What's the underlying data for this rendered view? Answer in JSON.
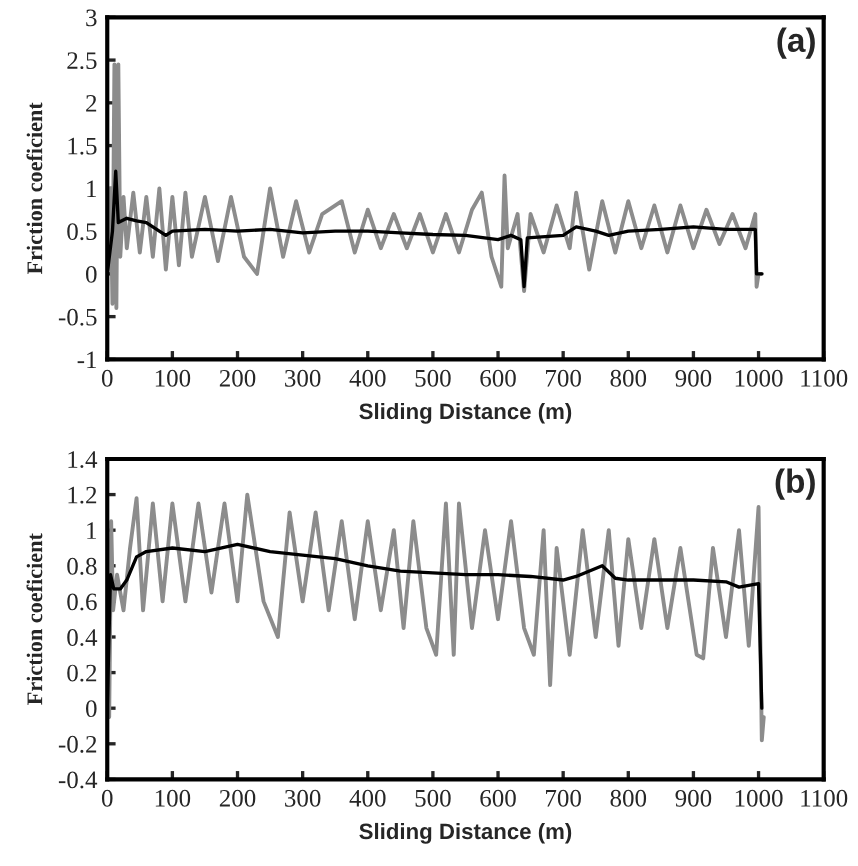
{
  "chart_data": [
    {
      "type": "line",
      "xlabel": "Sliding Distance (m)",
      "ylabel": "Friction coeficient",
      "annotations": [
        "(a)"
      ],
      "xlim": [
        0,
        1100
      ],
      "xticks": [
        0,
        100,
        200,
        300,
        400,
        500,
        600,
        700,
        800,
        900,
        1000,
        1100
      ],
      "ylim": [
        -1,
        3
      ],
      "yticks": [
        -1,
        -0.5,
        0,
        0.5,
        1,
        1.5,
        2,
        2.5,
        3
      ],
      "grid": false,
      "legend": false,
      "series": [
        {
          "color": "#8c8c8c",
          "x": [
            0,
            5,
            8,
            11,
            14,
            17,
            20,
            25,
            30,
            40,
            50,
            60,
            70,
            80,
            90,
            100,
            110,
            120,
            130,
            150,
            170,
            190,
            210,
            230,
            250,
            270,
            290,
            310,
            330,
            360,
            380,
            400,
            420,
            440,
            460,
            480,
            500,
            520,
            540,
            560,
            575,
            590,
            605,
            610,
            615,
            630,
            640,
            650,
            670,
            690,
            710,
            720,
            740,
            760,
            780,
            800,
            820,
            840,
            860,
            880,
            900,
            920,
            940,
            960,
            980,
            995,
            997,
            1000,
            1005
          ],
          "values": [
            0,
            1.0,
            -0.35,
            2.45,
            -0.4,
            2.45,
            0.2,
            0.9,
            0.3,
            0.95,
            0.25,
            0.9,
            0.2,
            1.0,
            0.05,
            0.9,
            0.1,
            0.95,
            0.2,
            0.9,
            0.15,
            0.9,
            0.2,
            0.0,
            1.0,
            0.2,
            0.85,
            0.25,
            0.7,
            0.85,
            0.25,
            0.75,
            0.3,
            0.7,
            0.3,
            0.7,
            0.25,
            0.7,
            0.25,
            0.75,
            0.95,
            0.2,
            -0.15,
            1.15,
            0.3,
            0.7,
            -0.2,
            0.7,
            0.25,
            0.8,
            0.3,
            0.95,
            0.05,
            0.85,
            0.25,
            0.85,
            0.3,
            0.8,
            0.25,
            0.8,
            0.3,
            0.75,
            0.35,
            0.7,
            0.3,
            0.7,
            -0.15,
            0.0,
            0.0
          ]
        },
        {
          "color": "#000000",
          "x": [
            0,
            8,
            13,
            17,
            30,
            45,
            60,
            80,
            90,
            100,
            150,
            200,
            250,
            300,
            350,
            400,
            450,
            500,
            550,
            600,
            620,
            635,
            640,
            645,
            700,
            720,
            750,
            770,
            800,
            850,
            900,
            950,
            995,
            997,
            1005
          ],
          "values": [
            0,
            0.5,
            1.2,
            0.6,
            0.65,
            0.62,
            0.6,
            0.5,
            0.45,
            0.5,
            0.52,
            0.5,
            0.52,
            0.48,
            0.5,
            0.5,
            0.48,
            0.46,
            0.45,
            0.4,
            0.45,
            0.4,
            -0.15,
            0.42,
            0.45,
            0.55,
            0.5,
            0.45,
            0.5,
            0.52,
            0.55,
            0.52,
            0.52,
            0.0,
            0.0
          ]
        }
      ]
    },
    {
      "type": "line",
      "xlabel": "Sliding Distance (m)",
      "ylabel": "Friction coeficient",
      "annotations": [
        "(b)"
      ],
      "xlim": [
        0,
        1100
      ],
      "xticks": [
        0,
        100,
        200,
        300,
        400,
        500,
        600,
        700,
        800,
        900,
        1000,
        1100
      ],
      "ylim": [
        -0.4,
        1.4
      ],
      "yticks": [
        -0.4,
        -0.2,
        0,
        0.2,
        0.4,
        0.6,
        0.8,
        1,
        1.2,
        1.4
      ],
      "grid": false,
      "legend": false,
      "series": [
        {
          "color": "#8c8c8c",
          "x": [
            0,
            3,
            6,
            9,
            15,
            25,
            35,
            45,
            55,
            70,
            85,
            100,
            120,
            140,
            160,
            180,
            200,
            215,
            240,
            262,
            280,
            300,
            320,
            340,
            360,
            380,
            400,
            420,
            440,
            455,
            470,
            490,
            505,
            520,
            532,
            540,
            560,
            580,
            600,
            620,
            640,
            655,
            670,
            680,
            690,
            710,
            730,
            750,
            770,
            785,
            800,
            820,
            840,
            860,
            880,
            905,
            915,
            930,
            950,
            970,
            985,
            1000,
            1005,
            1008
          ],
          "values": [
            0,
            -0.05,
            1.05,
            0.55,
            0.75,
            0.55,
            0.9,
            1.18,
            0.55,
            1.15,
            0.6,
            1.15,
            0.6,
            1.15,
            0.65,
            1.15,
            0.6,
            1.2,
            0.6,
            0.4,
            1.1,
            0.6,
            1.1,
            0.55,
            1.05,
            0.5,
            1.05,
            0.55,
            1.0,
            0.45,
            1.05,
            0.45,
            0.3,
            1.15,
            0.3,
            1.15,
            0.45,
            1.0,
            0.5,
            1.05,
            0.45,
            0.3,
            1.0,
            0.13,
            0.9,
            0.3,
            1.0,
            0.4,
            1.0,
            0.35,
            0.95,
            0.45,
            0.95,
            0.45,
            0.9,
            0.3,
            0.28,
            0.9,
            0.4,
            1.0,
            0.35,
            1.13,
            -0.18,
            -0.05
          ]
        },
        {
          "color": "#000000",
          "x": [
            0,
            5,
            10,
            20,
            30,
            45,
            60,
            100,
            150,
            200,
            250,
            300,
            350,
            400,
            450,
            500,
            550,
            600,
            650,
            700,
            720,
            760,
            780,
            800,
            850,
            900,
            950,
            970,
            1000,
            1005
          ],
          "values": [
            0,
            0.75,
            0.67,
            0.67,
            0.72,
            0.85,
            0.88,
            0.9,
            0.88,
            0.92,
            0.88,
            0.86,
            0.84,
            0.8,
            0.77,
            0.76,
            0.75,
            0.75,
            0.74,
            0.72,
            0.74,
            0.8,
            0.73,
            0.72,
            0.72,
            0.72,
            0.71,
            0.68,
            0.7,
            0.0
          ]
        }
      ]
    }
  ]
}
